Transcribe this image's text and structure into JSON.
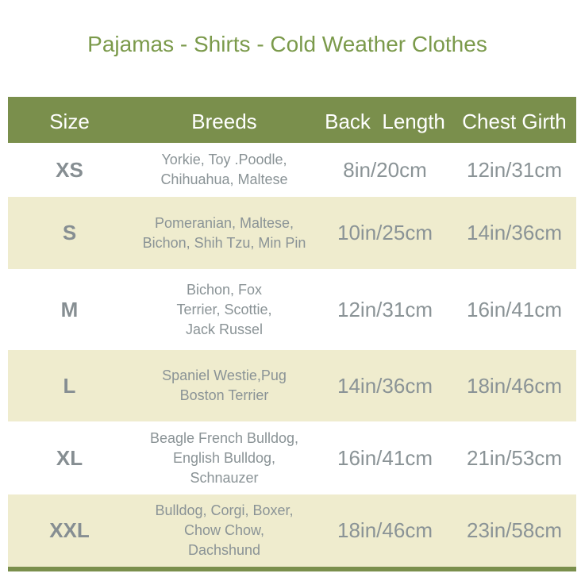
{
  "title": "Pajamas - Shirts - Cold Weather Clothes",
  "header": {
    "size": "Size",
    "breeds": "Breeds",
    "back_length": "Back  Length",
    "chest_girth": "Chest Girth"
  },
  "rows": [
    {
      "size": "XS",
      "breeds": "Yorkie, Toy .Poodle,\nChihuahua, Maltese",
      "back_length": "8in/20cm",
      "chest_girth": "12in/31cm"
    },
    {
      "size": "S",
      "breeds": "Pomeranian, Maltese,\nBichon, Shih Tzu, Min Pin",
      "back_length": "10in/25cm",
      "chest_girth": "14in/36cm"
    },
    {
      "size": "M",
      "breeds": "Bichon, Fox\nTerrier, Scottie,\nJack Russel",
      "back_length": "12in/31cm",
      "chest_girth": "16in/41cm"
    },
    {
      "size": "L",
      "breeds": "Spaniel Westie,Pug\nBoston Terrier",
      "back_length": "14in/36cm",
      "chest_girth": "18in/46cm"
    },
    {
      "size": "XL",
      "breeds": "Beagle French Bulldog,\nEnglish Bulldog,\nSchnauzer",
      "back_length": "16in/41cm",
      "chest_girth": "21in/53cm"
    },
    {
      "size": "XXL",
      "breeds": "Bulldog, Corgi, Boxer,\nChow Chow,\nDachshund",
      "back_length": "18in/46cm",
      "chest_girth": "23in/58cm"
    }
  ],
  "colors": {
    "header": "#7a8f4c",
    "alt_row": "#efecce",
    "title": "#7b9a4b",
    "text": "#8a9396"
  }
}
